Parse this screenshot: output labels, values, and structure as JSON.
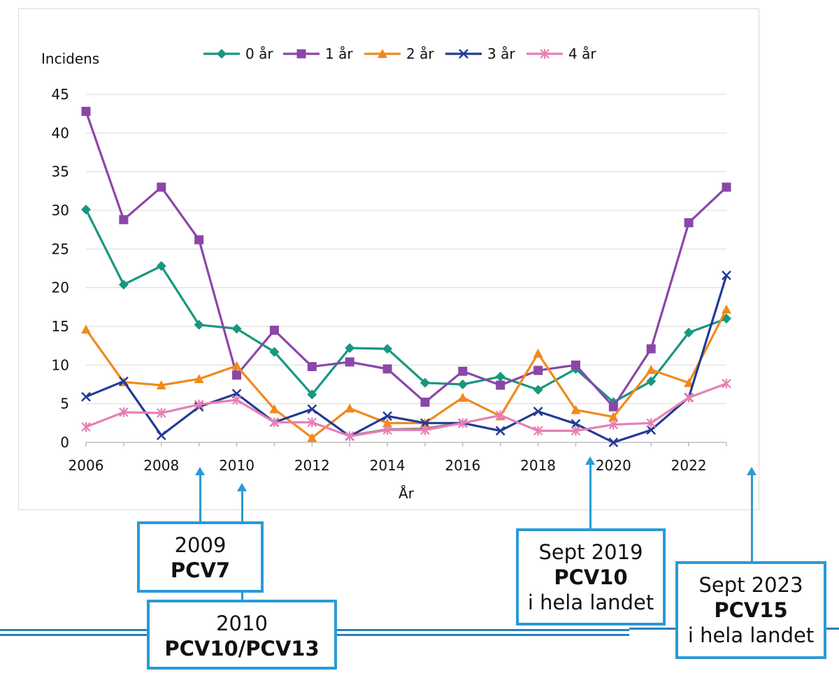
{
  "chart_data": {
    "type": "line",
    "ylabel": "Incidens",
    "xlabel": "År",
    "x": [
      2006,
      2007,
      2008,
      2009,
      2010,
      2011,
      2012,
      2013,
      2014,
      2015,
      2016,
      2017,
      2018,
      2019,
      2020,
      2021,
      2022,
      2023
    ],
    "xticks": [
      2006,
      2008,
      2010,
      2012,
      2014,
      2016,
      2018,
      2020,
      2022
    ],
    "yticks": [
      0,
      5,
      10,
      15,
      20,
      25,
      30,
      35,
      40,
      45
    ],
    "ylim": [
      0,
      45
    ],
    "xlim": [
      2006,
      2023
    ],
    "grid": "horizontal",
    "legend_position": "top",
    "series": [
      {
        "name": "0 år",
        "color": "#17977f",
        "marker": "diamond",
        "values": [
          30.1,
          20.4,
          22.8,
          15.2,
          14.7,
          11.7,
          6.2,
          12.2,
          12.1,
          7.7,
          7.5,
          8.5,
          6.8,
          9.5,
          5.2,
          7.9,
          14.2,
          16.0
        ]
      },
      {
        "name": "1 år",
        "color": "#8b46a8",
        "marker": "square",
        "values": [
          42.8,
          28.8,
          33.0,
          26.2,
          8.7,
          14.5,
          9.8,
          10.4,
          9.5,
          5.2,
          9.2,
          7.4,
          9.3,
          10.0,
          4.6,
          12.1,
          28.4,
          33.0
        ]
      },
      {
        "name": "2 år",
        "color": "#f08a1c",
        "marker": "triangle",
        "values": [
          14.6,
          7.8,
          7.4,
          8.2,
          9.9,
          4.3,
          0.6,
          4.4,
          2.5,
          2.5,
          5.8,
          3.4,
          11.5,
          4.2,
          3.3,
          9.4,
          7.7,
          17.2
        ]
      },
      {
        "name": "3 år",
        "color": "#223b96",
        "marker": "x",
        "values": [
          5.9,
          7.9,
          0.9,
          4.6,
          6.3,
          2.6,
          4.3,
          0.8,
          3.4,
          2.5,
          2.5,
          1.5,
          4.0,
          2.4,
          0.0,
          1.6,
          5.8,
          21.6
        ]
      },
      {
        "name": "4 år",
        "color": "#e77fb3",
        "marker": "star",
        "values": [
          2.0,
          3.9,
          3.8,
          4.9,
          5.5,
          2.6,
          2.6,
          0.8,
          1.6,
          1.6,
          2.5,
          3.5,
          1.5,
          1.5,
          2.3,
          2.5,
          5.8,
          7.6
        ]
      }
    ],
    "unlabeled_series": [
      {
        "color": "#8a8a8a",
        "values": [
          null,
          null,
          null,
          null,
          5.7,
          null,
          null,
          0.9,
          1.7,
          1.8,
          2.6,
          null,
          null,
          null,
          null,
          null,
          null,
          null
        ]
      }
    ]
  },
  "annotations": [
    {
      "id": "pcv7",
      "year": "2009",
      "vaccine": "PCV7",
      "sub": ""
    },
    {
      "id": "pcv10-13",
      "year": "2010",
      "vaccine": "PCV10/PCV13",
      "sub": ""
    },
    {
      "id": "pcv10",
      "year": "Sept 2019",
      "vaccine": "PCV10",
      "sub": "i hela landet"
    },
    {
      "id": "pcv15",
      "year": "Sept 2023",
      "vaccine": "PCV15",
      "sub": "i hela landet"
    }
  ],
  "colors": {
    "annotation_border": "#2a9ad6",
    "timeline": "#2b7fb8",
    "grid": "#d9d9d9"
  }
}
